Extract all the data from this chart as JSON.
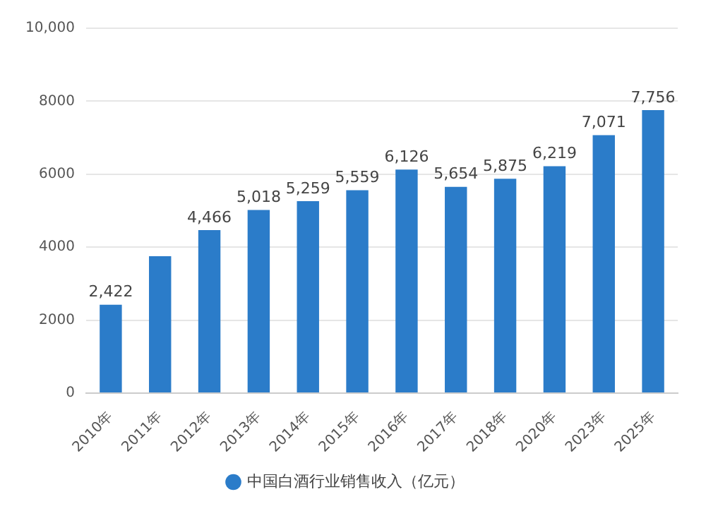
{
  "chart_data": {
    "type": "bar",
    "categories": [
      "2010年",
      "2011年",
      "2012年",
      "2013年",
      "2014年",
      "2015年",
      "2016年",
      "2017年",
      "2018年",
      "2020年",
      "2023年",
      "2025年"
    ],
    "series": [
      {
        "name": "中国白酒行业销售收入（亿元）",
        "color": "#2b7cc9",
        "values": [
          2422,
          3750,
          4466,
          5018,
          5259,
          5559,
          6126,
          5654,
          5875,
          6219,
          7071,
          7756
        ],
        "value_labels": [
          "2,422",
          null,
          "4,466",
          "5,018",
          "5,259",
          "5,559",
          "6,126",
          "5,654",
          "5,875",
          "6,219",
          "7,071",
          "7,756"
        ]
      }
    ],
    "ylim": [
      0,
      10000
    ],
    "yticks": [
      0,
      2000,
      4000,
      6000,
      8000,
      {
        "value": 10000,
        "label": "10,000"
      }
    ],
    "grid": "y",
    "legend": "bottom"
  }
}
